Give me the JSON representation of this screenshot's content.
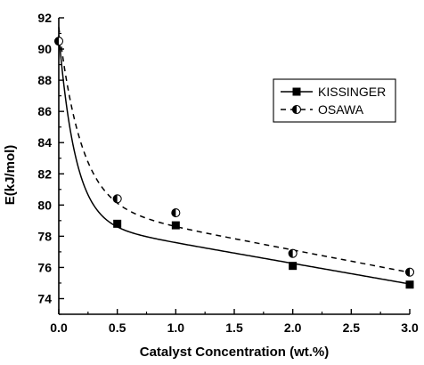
{
  "chart_data": {
    "type": "scatter",
    "title": "",
    "xlabel": "Catalyst Concentration (wt.%)",
    "ylabel": "E(kJ/mol)",
    "xlim": [
      0.0,
      3.0
    ],
    "ylim": [
      73,
      92
    ],
    "x_ticks": [
      "0.0",
      "0.5",
      "1.0",
      "1.5",
      "2.0",
      "2.5",
      "3.0"
    ],
    "y_ticks": [
      "74",
      "76",
      "78",
      "80",
      "82",
      "84",
      "86",
      "88",
      "90",
      "92"
    ],
    "grid": false,
    "legend_position": "top-right",
    "series": [
      {
        "name": "KISSINGER",
        "marker": "filled-square",
        "line_style": "solid",
        "x": [
          0.0,
          0.5,
          1.0,
          2.0,
          3.0
        ],
        "y": [
          90.5,
          78.8,
          78.7,
          76.1,
          74.9
        ]
      },
      {
        "name": "OSAWA",
        "marker": "half-filled-circle",
        "line_style": "dashed",
        "x": [
          0.0,
          0.5,
          1.0,
          2.0,
          3.0
        ],
        "y": [
          90.5,
          80.4,
          79.5,
          76.9,
          75.7
        ]
      }
    ]
  }
}
